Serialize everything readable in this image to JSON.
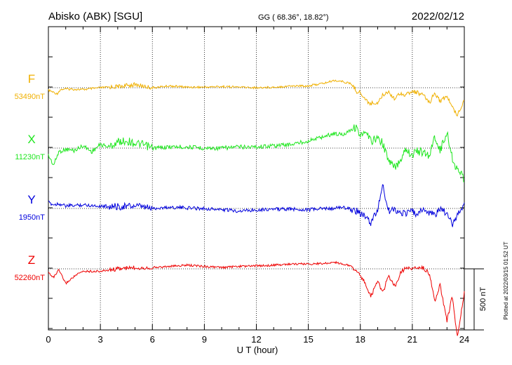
{
  "header": {
    "station": "Abisko (ABK)  [SGU]",
    "coords": "GG ( 68.36°,  18.82°)",
    "date": "2022/02/12"
  },
  "footer_note": "Plotted at 2022/03/15 01:52 UT",
  "chart_data": {
    "type": "line",
    "title": "",
    "xlabel": "U T (hour)",
    "ylabel": "",
    "xlim": [
      0,
      24
    ],
    "x_ticks": [
      0,
      3,
      6,
      9,
      12,
      15,
      18,
      21,
      24
    ],
    "x_tick_labels": [
      "0",
      "3",
      "6",
      "9",
      "12",
      "15",
      "18",
      "21",
      "24"
    ],
    "grid": true,
    "scale_bar": {
      "label": "500 nT",
      "value_nT": 500
    },
    "series": [
      {
        "name": "F",
        "baseline_label": "53490nT",
        "color": "#f0b000",
        "x": [
          0,
          0.5,
          0.7,
          1,
          2,
          3,
          4,
          5,
          6,
          7,
          8,
          9,
          10,
          11,
          12,
          13,
          14,
          15,
          16,
          16.5,
          17,
          17.5,
          17.8,
          18,
          18.3,
          18.6,
          19,
          19.3,
          19.6,
          20,
          20.3,
          20.6,
          21,
          21.3,
          21.6,
          22,
          22.3,
          22.6,
          23,
          23.3,
          23.6,
          24
        ],
        "values": [
          -20,
          -50,
          -15,
          -10,
          -15,
          0,
          10,
          25,
          0,
          15,
          5,
          5,
          10,
          5,
          0,
          5,
          15,
          15,
          40,
          60,
          50,
          30,
          -30,
          -40,
          -100,
          -130,
          -120,
          -60,
          -30,
          -90,
          -40,
          -60,
          -30,
          -40,
          -60,
          -120,
          -40,
          -110,
          -70,
          -160,
          -220,
          -100
        ]
      },
      {
        "name": "X",
        "baseline_label": "11230nT",
        "color": "#1ee61e",
        "x": [
          0,
          0.3,
          0.6,
          1,
          1.5,
          2,
          2.5,
          3,
          3.5,
          4,
          4.5,
          5,
          5.5,
          6,
          7,
          8,
          9,
          10,
          11,
          12,
          13,
          14,
          15,
          16,
          16.5,
          17,
          17.5,
          17.8,
          18,
          18.3,
          18.6,
          19,
          19.3,
          19.6,
          20,
          20.3,
          20.6,
          21,
          21.3,
          21.6,
          22,
          22.3,
          22.6,
          23,
          23.3,
          23.6,
          24
        ],
        "values": [
          -60,
          -140,
          -30,
          -10,
          -20,
          20,
          -30,
          30,
          10,
          50,
          60,
          40,
          25,
          0,
          10,
          10,
          0,
          0,
          10,
          10,
          20,
          30,
          60,
          100,
          120,
          110,
          160,
          170,
          100,
          120,
          60,
          80,
          40,
          -100,
          -160,
          -100,
          0,
          -60,
          -20,
          -40,
          -60,
          100,
          -20,
          130,
          -80,
          -180,
          -250
        ]
      },
      {
        "name": "Y",
        "baseline_label": "1950nT",
        "color": "#0000dd",
        "x": [
          0,
          0.3,
          0.6,
          1,
          2,
          3,
          4,
          5,
          6,
          7,
          8,
          9,
          10,
          11,
          12,
          13,
          14,
          15,
          16,
          16.5,
          17,
          17.5,
          17.8,
          18,
          18.3,
          18.6,
          19,
          19.3,
          19.6,
          20,
          20.3,
          20.6,
          21,
          21.3,
          21.6,
          22,
          22.3,
          22.6,
          23,
          23.3,
          23.6,
          24
        ],
        "values": [
          50,
          30,
          40,
          20,
          30,
          20,
          15,
          20,
          0,
          10,
          5,
          0,
          -10,
          -20,
          -10,
          -5,
          -5,
          -10,
          0,
          0,
          10,
          -10,
          -20,
          -40,
          -70,
          -120,
          -10,
          200,
          -20,
          -10,
          -30,
          -40,
          -20,
          -60,
          0,
          -40,
          -50,
          -10,
          -40,
          -130,
          -50,
          30
        ]
      },
      {
        "name": "Z",
        "baseline_label": "52260nT",
        "color": "#ee0000",
        "x": [
          0,
          0.3,
          0.6,
          1,
          1.5,
          2,
          3,
          4,
          5,
          6,
          7,
          8,
          9,
          10,
          11,
          12,
          13,
          14,
          15,
          16,
          16.5,
          17,
          17.5,
          17.8,
          18,
          18.3,
          18.6,
          19,
          19.3,
          19.6,
          20,
          20.3,
          20.6,
          21,
          21.3,
          21.6,
          22,
          22.3,
          22.6,
          23,
          23.3,
          23.6,
          24
        ],
        "values": [
          -30,
          -70,
          -10,
          -120,
          -60,
          -20,
          -20,
          0,
          10,
          10,
          20,
          30,
          20,
          10,
          20,
          25,
          30,
          40,
          40,
          45,
          55,
          40,
          20,
          -20,
          -60,
          -120,
          -230,
          -100,
          -200,
          -60,
          -150,
          -40,
          10,
          0,
          10,
          10,
          -40,
          -280,
          -130,
          -430,
          -220,
          -560,
          -200
        ]
      }
    ]
  }
}
